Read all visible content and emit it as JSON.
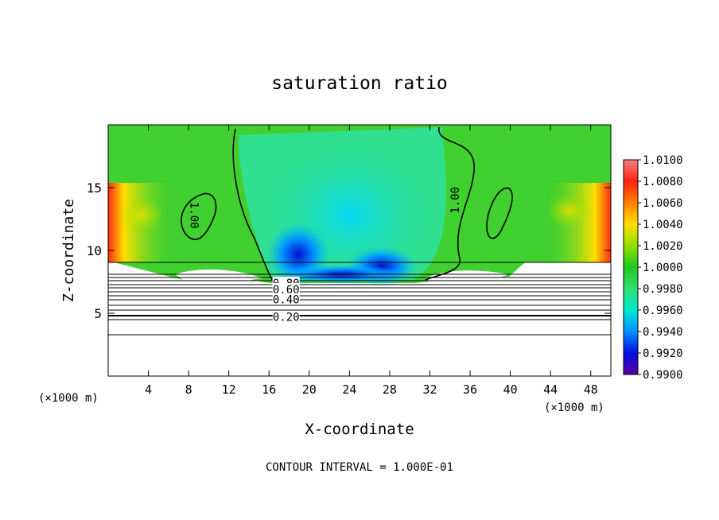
{
  "chart_data": {
    "type": "heatmap",
    "title": "saturation ratio",
    "xlabel": "X-coordinate",
    "ylabel": "Z-coordinate",
    "x_unit_left": "(×1000 m)",
    "x_unit_right": "(×1000 m)",
    "footer": "CONTOUR INTERVAL = 1.000E-01",
    "xlim": [
      0,
      50
    ],
    "ylim": [
      0,
      20
    ],
    "x_ticks": [
      4,
      8,
      12,
      16,
      20,
      24,
      28,
      32,
      36,
      40,
      44,
      48
    ],
    "y_ticks": [
      5,
      10,
      15
    ],
    "colorbar": {
      "min": 0.99,
      "max": 1.01,
      "labels": [
        "1.0100",
        "1.0080",
        "1.0060",
        "1.0040",
        "1.0020",
        "1.0000",
        "0.9980",
        "0.9960",
        "0.9940",
        "0.9920",
        "0.9900"
      ],
      "colors": [
        "#f08080",
        "#ff2010",
        "#ff8000",
        "#ffe000",
        "#90e000",
        "#20c820",
        "#30e070",
        "#00e8d0",
        "#0090ff",
        "#0010e0",
        "#5a00a0"
      ]
    },
    "contour_labels": [
      {
        "text": "1.00",
        "x": 8.6,
        "y": 12.8,
        "rotate": 90
      },
      {
        "text": "1.00",
        "x": 34.5,
        "y": 14.0,
        "rotate": -90
      },
      {
        "text": "0.80",
        "x": 17.7,
        "y": 7.4,
        "rotate": 0
      },
      {
        "text": "0.60",
        "x": 17.7,
        "y": 6.9,
        "rotate": 0
      },
      {
        "text": "0.40",
        "x": 17.7,
        "y": 6.1,
        "rotate": 0
      },
      {
        "text": "0.20",
        "x": 17.7,
        "y": 4.7,
        "rotate": 0
      }
    ]
  }
}
